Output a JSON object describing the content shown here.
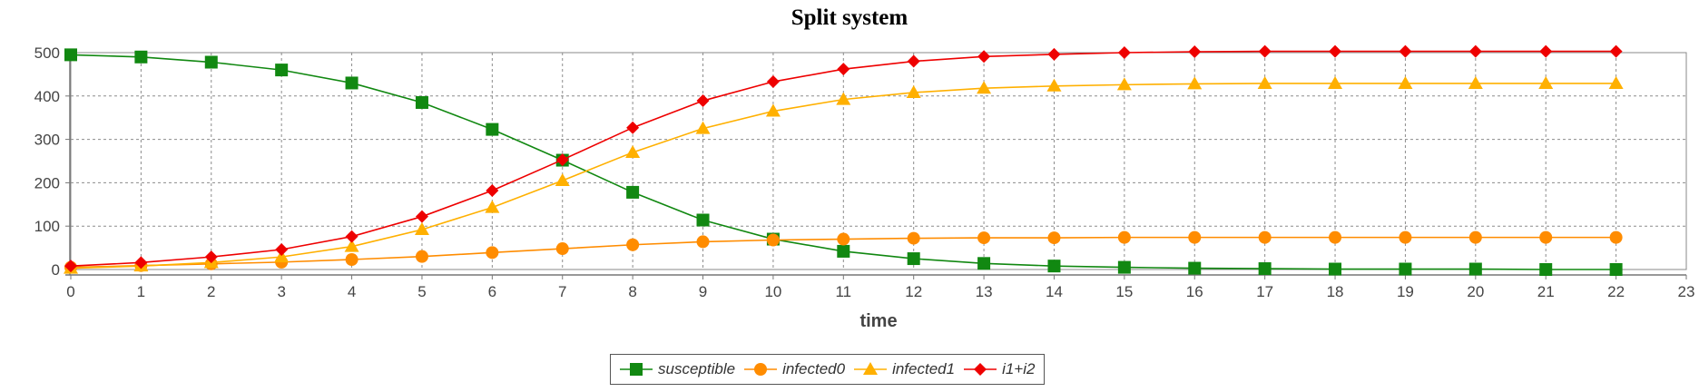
{
  "chart_data": {
    "type": "line",
    "title": "Split system",
    "xlabel": "time",
    "ylabel": "",
    "xlim": [
      0,
      23
    ],
    "ylim": [
      0,
      500
    ],
    "xticks": [
      0,
      1,
      2,
      3,
      4,
      5,
      6,
      7,
      8,
      9,
      10,
      11,
      12,
      13,
      14,
      15,
      16,
      17,
      18,
      19,
      20,
      21,
      22,
      23
    ],
    "yticks": [
      0,
      100,
      200,
      300,
      400,
      500
    ],
    "grid": true,
    "legend_position": "bottom",
    "x": [
      0,
      1,
      2,
      3,
      4,
      5,
      6,
      7,
      8,
      9,
      10,
      11,
      12,
      13,
      14,
      15,
      16,
      17,
      18,
      19,
      20,
      21,
      22
    ],
    "series": [
      {
        "name": "susceptible",
        "color": "#118811",
        "marker": "square",
        "values": [
          495,
          490,
          478,
          460,
          430,
          385,
          323,
          252,
          178,
          114,
          70,
          42,
          25,
          14,
          8,
          5,
          3,
          2,
          1,
          1,
          1,
          0,
          0
        ]
      },
      {
        "name": "infected0",
        "color": "#ff8c00",
        "marker": "circle",
        "values": [
          5,
          9,
          13,
          17,
          23,
          30,
          39,
          48,
          57,
          64,
          68,
          70,
          72,
          73,
          73,
          74,
          74,
          74,
          74,
          74,
          74,
          74,
          74
        ]
      },
      {
        "name": "infected1",
        "color": "#ffb000",
        "marker": "triangle",
        "values": [
          3,
          8,
          16,
          29,
          53,
          92,
          143,
          205,
          270,
          325,
          365,
          392,
          408,
          418,
          423,
          426,
          428,
          429,
          429,
          429,
          429,
          429,
          429
        ]
      },
      {
        "name": "i1+i2",
        "color": "#ee0000",
        "marker": "diamond",
        "values": [
          8,
          16,
          29,
          46,
          76,
          122,
          182,
          253,
          327,
          389,
          433,
          462,
          480,
          491,
          496,
          500,
          502,
          503,
          503,
          503,
          503,
          503,
          503
        ]
      }
    ]
  }
}
